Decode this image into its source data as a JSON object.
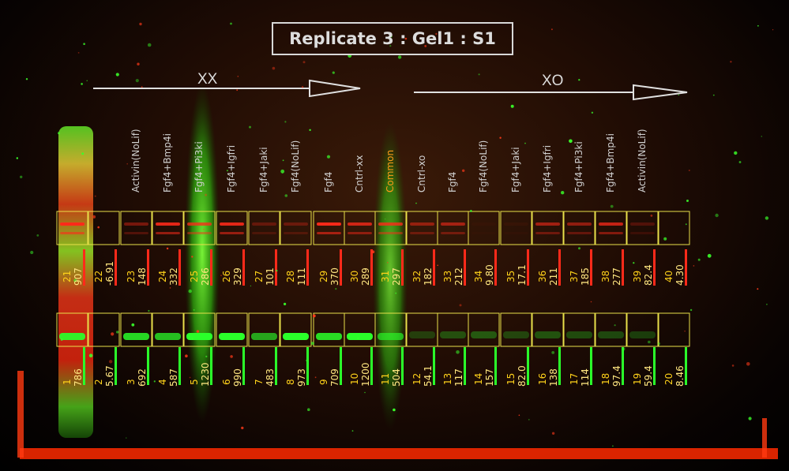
{
  "title": "Replicate 3 : Gel1 : S1",
  "groups": {
    "left": "XX",
    "right": "XO"
  },
  "lanes": [
    "Activin(NoLif)",
    "Fgf4+Bmp4i",
    "Fgf4+Pi3ki",
    "Fgf4+Igfri",
    "Fgf4+Jaki",
    "Fgf4(NoLif)",
    "Fgf4",
    "Cntrl-xx",
    "Common",
    "Cntrl-xo",
    "Fgf4",
    "Fgf4(NoLif)",
    "Fgf4+Jaki",
    "Fgf4+Igfri",
    "Fgf4+Pi3ki",
    "Fgf4+Bmp4i",
    "Activin(NoLif)"
  ],
  "top_row": [
    {
      "n": "21",
      "v": "907"
    },
    {
      "n": "22",
      "v": "-6.91"
    },
    {
      "n": "23",
      "v": "148"
    },
    {
      "n": "24",
      "v": "332"
    },
    {
      "n": "25",
      "v": "286"
    },
    {
      "n": "26",
      "v": "329"
    },
    {
      "n": "27",
      "v": "101"
    },
    {
      "n": "28",
      "v": "111"
    },
    {
      "n": "29",
      "v": "370"
    },
    {
      "n": "30",
      "v": "289"
    },
    {
      "n": "31",
      "v": "297"
    },
    {
      "n": "32",
      "v": "182"
    },
    {
      "n": "33",
      "v": "212"
    },
    {
      "n": "34",
      "v": "9.80"
    },
    {
      "n": "35",
      "v": "17.1"
    },
    {
      "n": "36",
      "v": "211"
    },
    {
      "n": "37",
      "v": "185"
    },
    {
      "n": "38",
      "v": "277"
    },
    {
      "n": "39",
      "v": "82.4"
    },
    {
      "n": "40",
      "v": "4.30"
    }
  ],
  "bottom_row": [
    {
      "n": "1",
      "v": "786"
    },
    {
      "n": "2",
      "v": "5.67"
    },
    {
      "n": "3",
      "v": "692"
    },
    {
      "n": "4",
      "v": "587"
    },
    {
      "n": "5",
      "v": "1230"
    },
    {
      "n": "6",
      "v": "990"
    },
    {
      "n": "7",
      "v": "483"
    },
    {
      "n": "8",
      "v": "973"
    },
    {
      "n": "9",
      "v": "709"
    },
    {
      "n": "10",
      "v": "1200"
    },
    {
      "n": "11",
      "v": "504"
    },
    {
      "n": "12",
      "v": "54.1"
    },
    {
      "n": "13",
      "v": "117"
    },
    {
      "n": "14",
      "v": "157"
    },
    {
      "n": "15",
      "v": "82.0"
    },
    {
      "n": "16",
      "v": "138"
    },
    {
      "n": "17",
      "v": "114"
    },
    {
      "n": "18",
      "v": "97.4"
    },
    {
      "n": "19",
      "v": "59.4"
    },
    {
      "n": "20",
      "v": "8.46"
    }
  ],
  "colors": {
    "red_band": "#ff2a1a",
    "green_band": "#2aff2a",
    "box": "#e8e04a",
    "number": "#ffd21a",
    "highlight": "#ff9a1a"
  }
}
